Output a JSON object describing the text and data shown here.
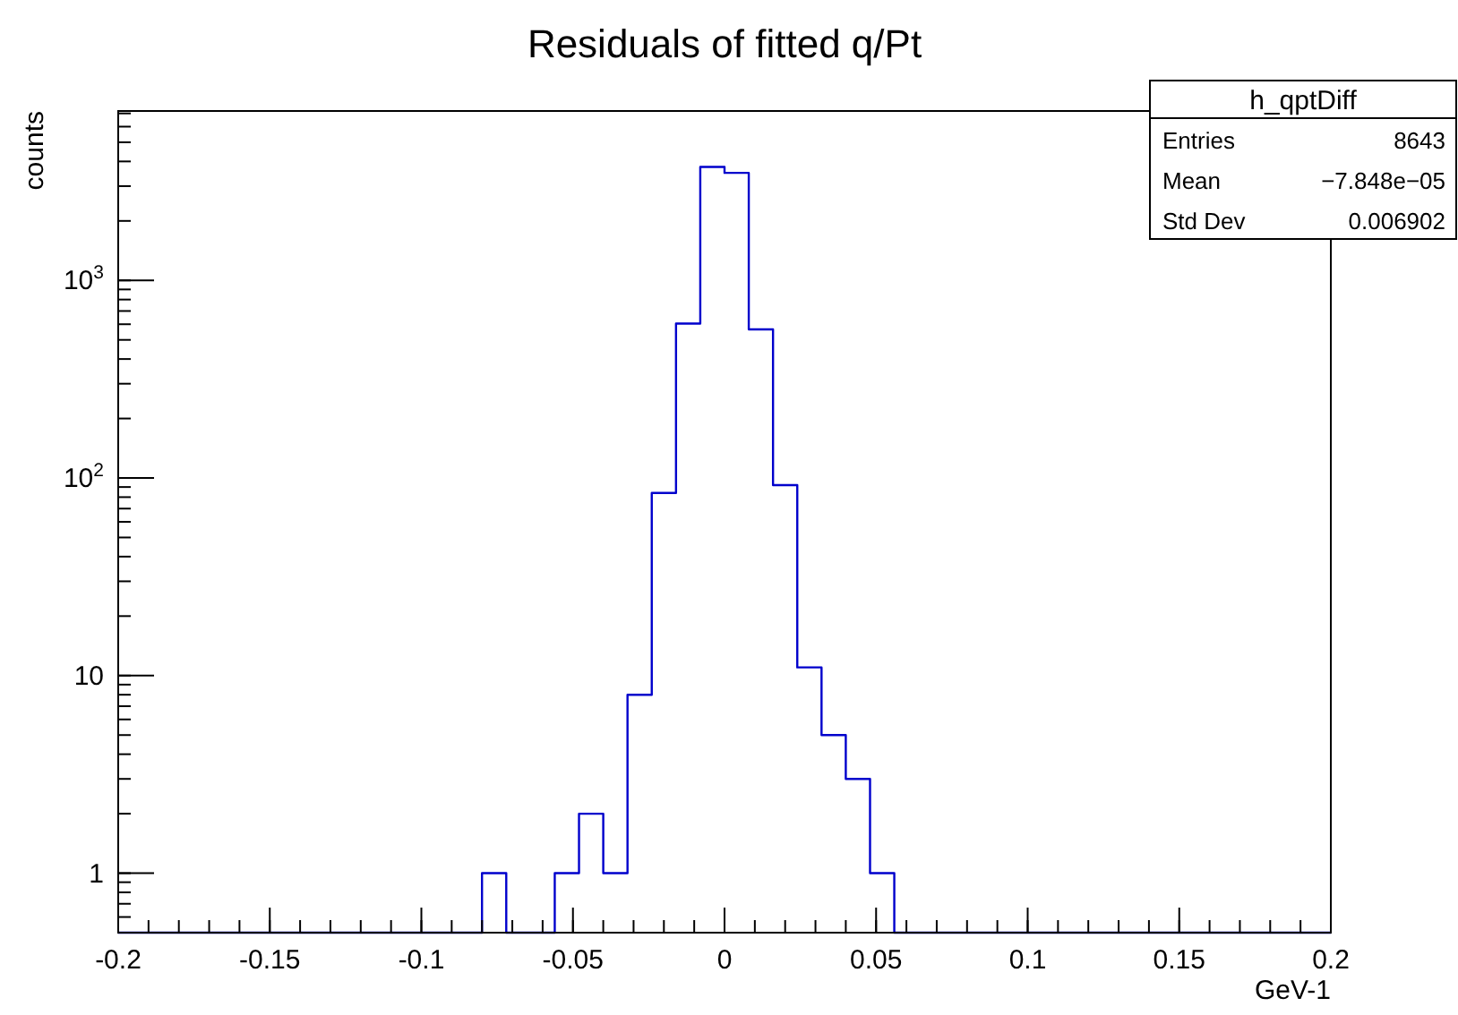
{
  "chart_data": {
    "type": "histogram",
    "title": "Residuals of fitted q/Pt",
    "xlabel": "GeV-1",
    "ylabel": "counts",
    "bins": [
      -0.2,
      -0.192,
      -0.184,
      -0.176,
      -0.168,
      -0.16,
      -0.152,
      -0.144,
      -0.136,
      -0.128,
      -0.12,
      -0.112,
      -0.104,
      -0.096,
      -0.088,
      -0.08,
      -0.072,
      -0.064,
      -0.056,
      -0.048,
      -0.04,
      -0.032,
      -0.024,
      -0.016,
      -0.008,
      0,
      0.008,
      0.016,
      0.024,
      0.032,
      0.04,
      0.048,
      0.056,
      0.064,
      0.072,
      0.08,
      0.088,
      0.096,
      0.104,
      0.112,
      0.12,
      0.128,
      0.136,
      0.144,
      0.152,
      0.16,
      0.168,
      0.176,
      0.184,
      0.192,
      0.2
    ],
    "values": [
      null,
      null,
      null,
      null,
      null,
      null,
      null,
      null,
      null,
      null,
      null,
      null,
      null,
      null,
      null,
      1,
      null,
      null,
      1,
      2,
      1,
      8,
      84,
      605,
      3750,
      3500,
      565,
      92,
      11,
      5,
      3,
      1,
      null,
      null,
      null,
      null,
      null,
      null,
      null,
      null,
      null,
      null,
      null,
      null,
      null,
      null,
      null,
      null,
      null,
      null
    ],
    "color": "#0000cc",
    "log": true,
    "grid": false,
    "xlim": [
      -0.2,
      0.2
    ],
    "xticks": [
      -0.2,
      -0.15,
      -0.1,
      -0.05,
      0,
      0.05,
      0.1,
      0.15,
      0.2
    ],
    "ylim": [
      0.5,
      7200
    ],
    "yticks": [
      1,
      10,
      {
        "value": 100,
        "label": "10$^{2}$"
      },
      {
        "value": 1000,
        "label": "10$^{3}$"
      }
    ],
    "annotations": [
      "h_qptDiff",
      "Entries",
      "8643",
      "Mean",
      "−7.848e−05",
      "Std Dev",
      "0.006902"
    ]
  }
}
